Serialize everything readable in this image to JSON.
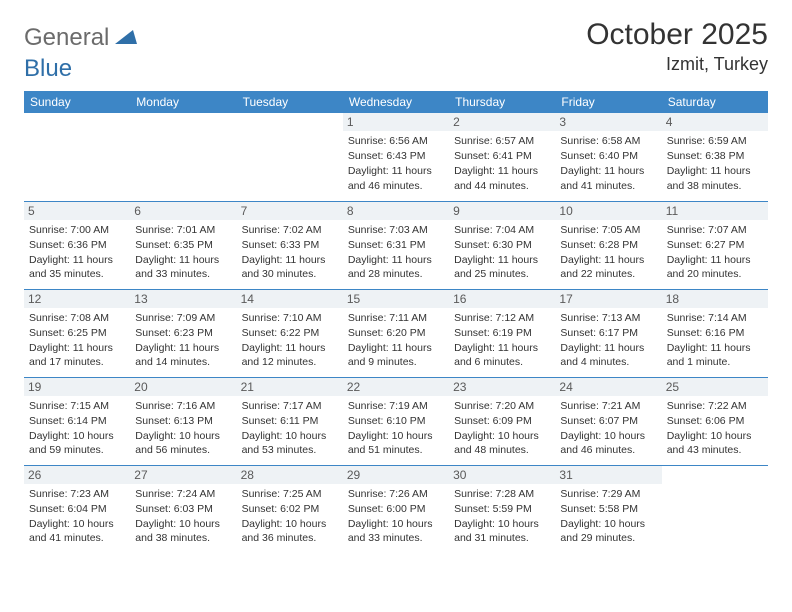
{
  "brand": {
    "part1": "General",
    "part2": "Blue"
  },
  "title": "October 2025",
  "location": "Izmit, Turkey",
  "colors": {
    "header_bg": "#3d86c6",
    "header_text": "#ffffff",
    "daynum_bg": "#eef2f5",
    "border": "#3d86c6",
    "logo_gray": "#6b6b6b",
    "logo_blue": "#2f6fa8"
  },
  "weekdays": [
    "Sunday",
    "Monday",
    "Tuesday",
    "Wednesday",
    "Thursday",
    "Friday",
    "Saturday"
  ],
  "weeks": [
    [
      null,
      null,
      null,
      {
        "n": "1",
        "sr": "Sunrise: 6:56 AM",
        "ss": "Sunset: 6:43 PM",
        "dl": "Daylight: 11 hours and 46 minutes."
      },
      {
        "n": "2",
        "sr": "Sunrise: 6:57 AM",
        "ss": "Sunset: 6:41 PM",
        "dl": "Daylight: 11 hours and 44 minutes."
      },
      {
        "n": "3",
        "sr": "Sunrise: 6:58 AM",
        "ss": "Sunset: 6:40 PM",
        "dl": "Daylight: 11 hours and 41 minutes."
      },
      {
        "n": "4",
        "sr": "Sunrise: 6:59 AM",
        "ss": "Sunset: 6:38 PM",
        "dl": "Daylight: 11 hours and 38 minutes."
      }
    ],
    [
      {
        "n": "5",
        "sr": "Sunrise: 7:00 AM",
        "ss": "Sunset: 6:36 PM",
        "dl": "Daylight: 11 hours and 35 minutes."
      },
      {
        "n": "6",
        "sr": "Sunrise: 7:01 AM",
        "ss": "Sunset: 6:35 PM",
        "dl": "Daylight: 11 hours and 33 minutes."
      },
      {
        "n": "7",
        "sr": "Sunrise: 7:02 AM",
        "ss": "Sunset: 6:33 PM",
        "dl": "Daylight: 11 hours and 30 minutes."
      },
      {
        "n": "8",
        "sr": "Sunrise: 7:03 AM",
        "ss": "Sunset: 6:31 PM",
        "dl": "Daylight: 11 hours and 28 minutes."
      },
      {
        "n": "9",
        "sr": "Sunrise: 7:04 AM",
        "ss": "Sunset: 6:30 PM",
        "dl": "Daylight: 11 hours and 25 minutes."
      },
      {
        "n": "10",
        "sr": "Sunrise: 7:05 AM",
        "ss": "Sunset: 6:28 PM",
        "dl": "Daylight: 11 hours and 22 minutes."
      },
      {
        "n": "11",
        "sr": "Sunrise: 7:07 AM",
        "ss": "Sunset: 6:27 PM",
        "dl": "Daylight: 11 hours and 20 minutes."
      }
    ],
    [
      {
        "n": "12",
        "sr": "Sunrise: 7:08 AM",
        "ss": "Sunset: 6:25 PM",
        "dl": "Daylight: 11 hours and 17 minutes."
      },
      {
        "n": "13",
        "sr": "Sunrise: 7:09 AM",
        "ss": "Sunset: 6:23 PM",
        "dl": "Daylight: 11 hours and 14 minutes."
      },
      {
        "n": "14",
        "sr": "Sunrise: 7:10 AM",
        "ss": "Sunset: 6:22 PM",
        "dl": "Daylight: 11 hours and 12 minutes."
      },
      {
        "n": "15",
        "sr": "Sunrise: 7:11 AM",
        "ss": "Sunset: 6:20 PM",
        "dl": "Daylight: 11 hours and 9 minutes."
      },
      {
        "n": "16",
        "sr": "Sunrise: 7:12 AM",
        "ss": "Sunset: 6:19 PM",
        "dl": "Daylight: 11 hours and 6 minutes."
      },
      {
        "n": "17",
        "sr": "Sunrise: 7:13 AM",
        "ss": "Sunset: 6:17 PM",
        "dl": "Daylight: 11 hours and 4 minutes."
      },
      {
        "n": "18",
        "sr": "Sunrise: 7:14 AM",
        "ss": "Sunset: 6:16 PM",
        "dl": "Daylight: 11 hours and 1 minute."
      }
    ],
    [
      {
        "n": "19",
        "sr": "Sunrise: 7:15 AM",
        "ss": "Sunset: 6:14 PM",
        "dl": "Daylight: 10 hours and 59 minutes."
      },
      {
        "n": "20",
        "sr": "Sunrise: 7:16 AM",
        "ss": "Sunset: 6:13 PM",
        "dl": "Daylight: 10 hours and 56 minutes."
      },
      {
        "n": "21",
        "sr": "Sunrise: 7:17 AM",
        "ss": "Sunset: 6:11 PM",
        "dl": "Daylight: 10 hours and 53 minutes."
      },
      {
        "n": "22",
        "sr": "Sunrise: 7:19 AM",
        "ss": "Sunset: 6:10 PM",
        "dl": "Daylight: 10 hours and 51 minutes."
      },
      {
        "n": "23",
        "sr": "Sunrise: 7:20 AM",
        "ss": "Sunset: 6:09 PM",
        "dl": "Daylight: 10 hours and 48 minutes."
      },
      {
        "n": "24",
        "sr": "Sunrise: 7:21 AM",
        "ss": "Sunset: 6:07 PM",
        "dl": "Daylight: 10 hours and 46 minutes."
      },
      {
        "n": "25",
        "sr": "Sunrise: 7:22 AM",
        "ss": "Sunset: 6:06 PM",
        "dl": "Daylight: 10 hours and 43 minutes."
      }
    ],
    [
      {
        "n": "26",
        "sr": "Sunrise: 7:23 AM",
        "ss": "Sunset: 6:04 PM",
        "dl": "Daylight: 10 hours and 41 minutes."
      },
      {
        "n": "27",
        "sr": "Sunrise: 7:24 AM",
        "ss": "Sunset: 6:03 PM",
        "dl": "Daylight: 10 hours and 38 minutes."
      },
      {
        "n": "28",
        "sr": "Sunrise: 7:25 AM",
        "ss": "Sunset: 6:02 PM",
        "dl": "Daylight: 10 hours and 36 minutes."
      },
      {
        "n": "29",
        "sr": "Sunrise: 7:26 AM",
        "ss": "Sunset: 6:00 PM",
        "dl": "Daylight: 10 hours and 33 minutes."
      },
      {
        "n": "30",
        "sr": "Sunrise: 7:28 AM",
        "ss": "Sunset: 5:59 PM",
        "dl": "Daylight: 10 hours and 31 minutes."
      },
      {
        "n": "31",
        "sr": "Sunrise: 7:29 AM",
        "ss": "Sunset: 5:58 PM",
        "dl": "Daylight: 10 hours and 29 minutes."
      },
      null
    ]
  ]
}
